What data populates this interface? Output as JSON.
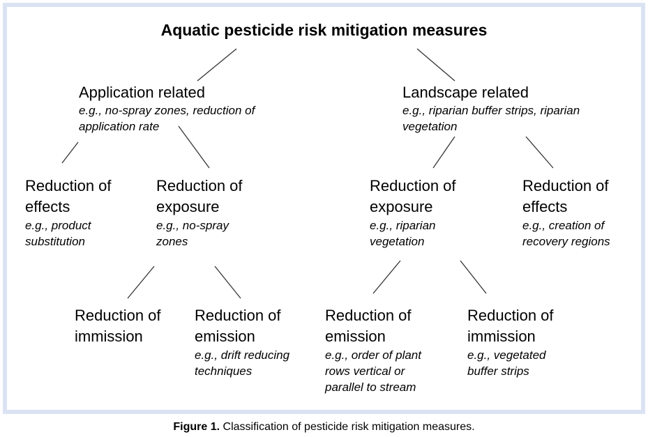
{
  "title": "Aquatic pesticide risk mitigation measures",
  "application": {
    "heading": "Application related",
    "example_line1": "e.g., no-spray zones, reduction of",
    "example_line2": "application rate",
    "effects": {
      "heading1": "Reduction of",
      "heading2": "effects",
      "example1": "e.g., product",
      "example2": "substitution"
    },
    "exposure": {
      "heading1": "Reduction of",
      "heading2": "exposure",
      "example1": "e.g., no-spray",
      "example2": "zones"
    },
    "immission": {
      "heading1": "Reduction of",
      "heading2": "immission"
    },
    "emission": {
      "heading1": "Reduction of",
      "heading2": "emission",
      "example1": "e.g., drift reducing",
      "example2": "techniques"
    }
  },
  "landscape": {
    "heading": "Landscape related",
    "example_line1": "e.g., riparian buffer strips, riparian",
    "example_line2": "vegetation",
    "exposure": {
      "heading1": "Reduction of",
      "heading2": "exposure",
      "example1": "e.g., riparian",
      "example2": "vegetation"
    },
    "effects": {
      "heading1": "Reduction of",
      "heading2": "effects",
      "example1": "e.g., creation of",
      "example2": "recovery regions"
    },
    "emission": {
      "heading1": "Reduction of",
      "heading2": "emission",
      "example1": "e.g., order of plant",
      "example2": "rows vertical or",
      "example3": "parallel to stream"
    },
    "immission": {
      "heading1": "Reduction of",
      "heading2": "immission",
      "example1": "e.g., vegetated",
      "example2": "buffer strips"
    }
  },
  "caption": {
    "label": "Figure 1.",
    "text": "Classification of pesticide risk mitigation measures."
  },
  "colors": {
    "frame": "#dbe3f3",
    "text": "#000000"
  }
}
